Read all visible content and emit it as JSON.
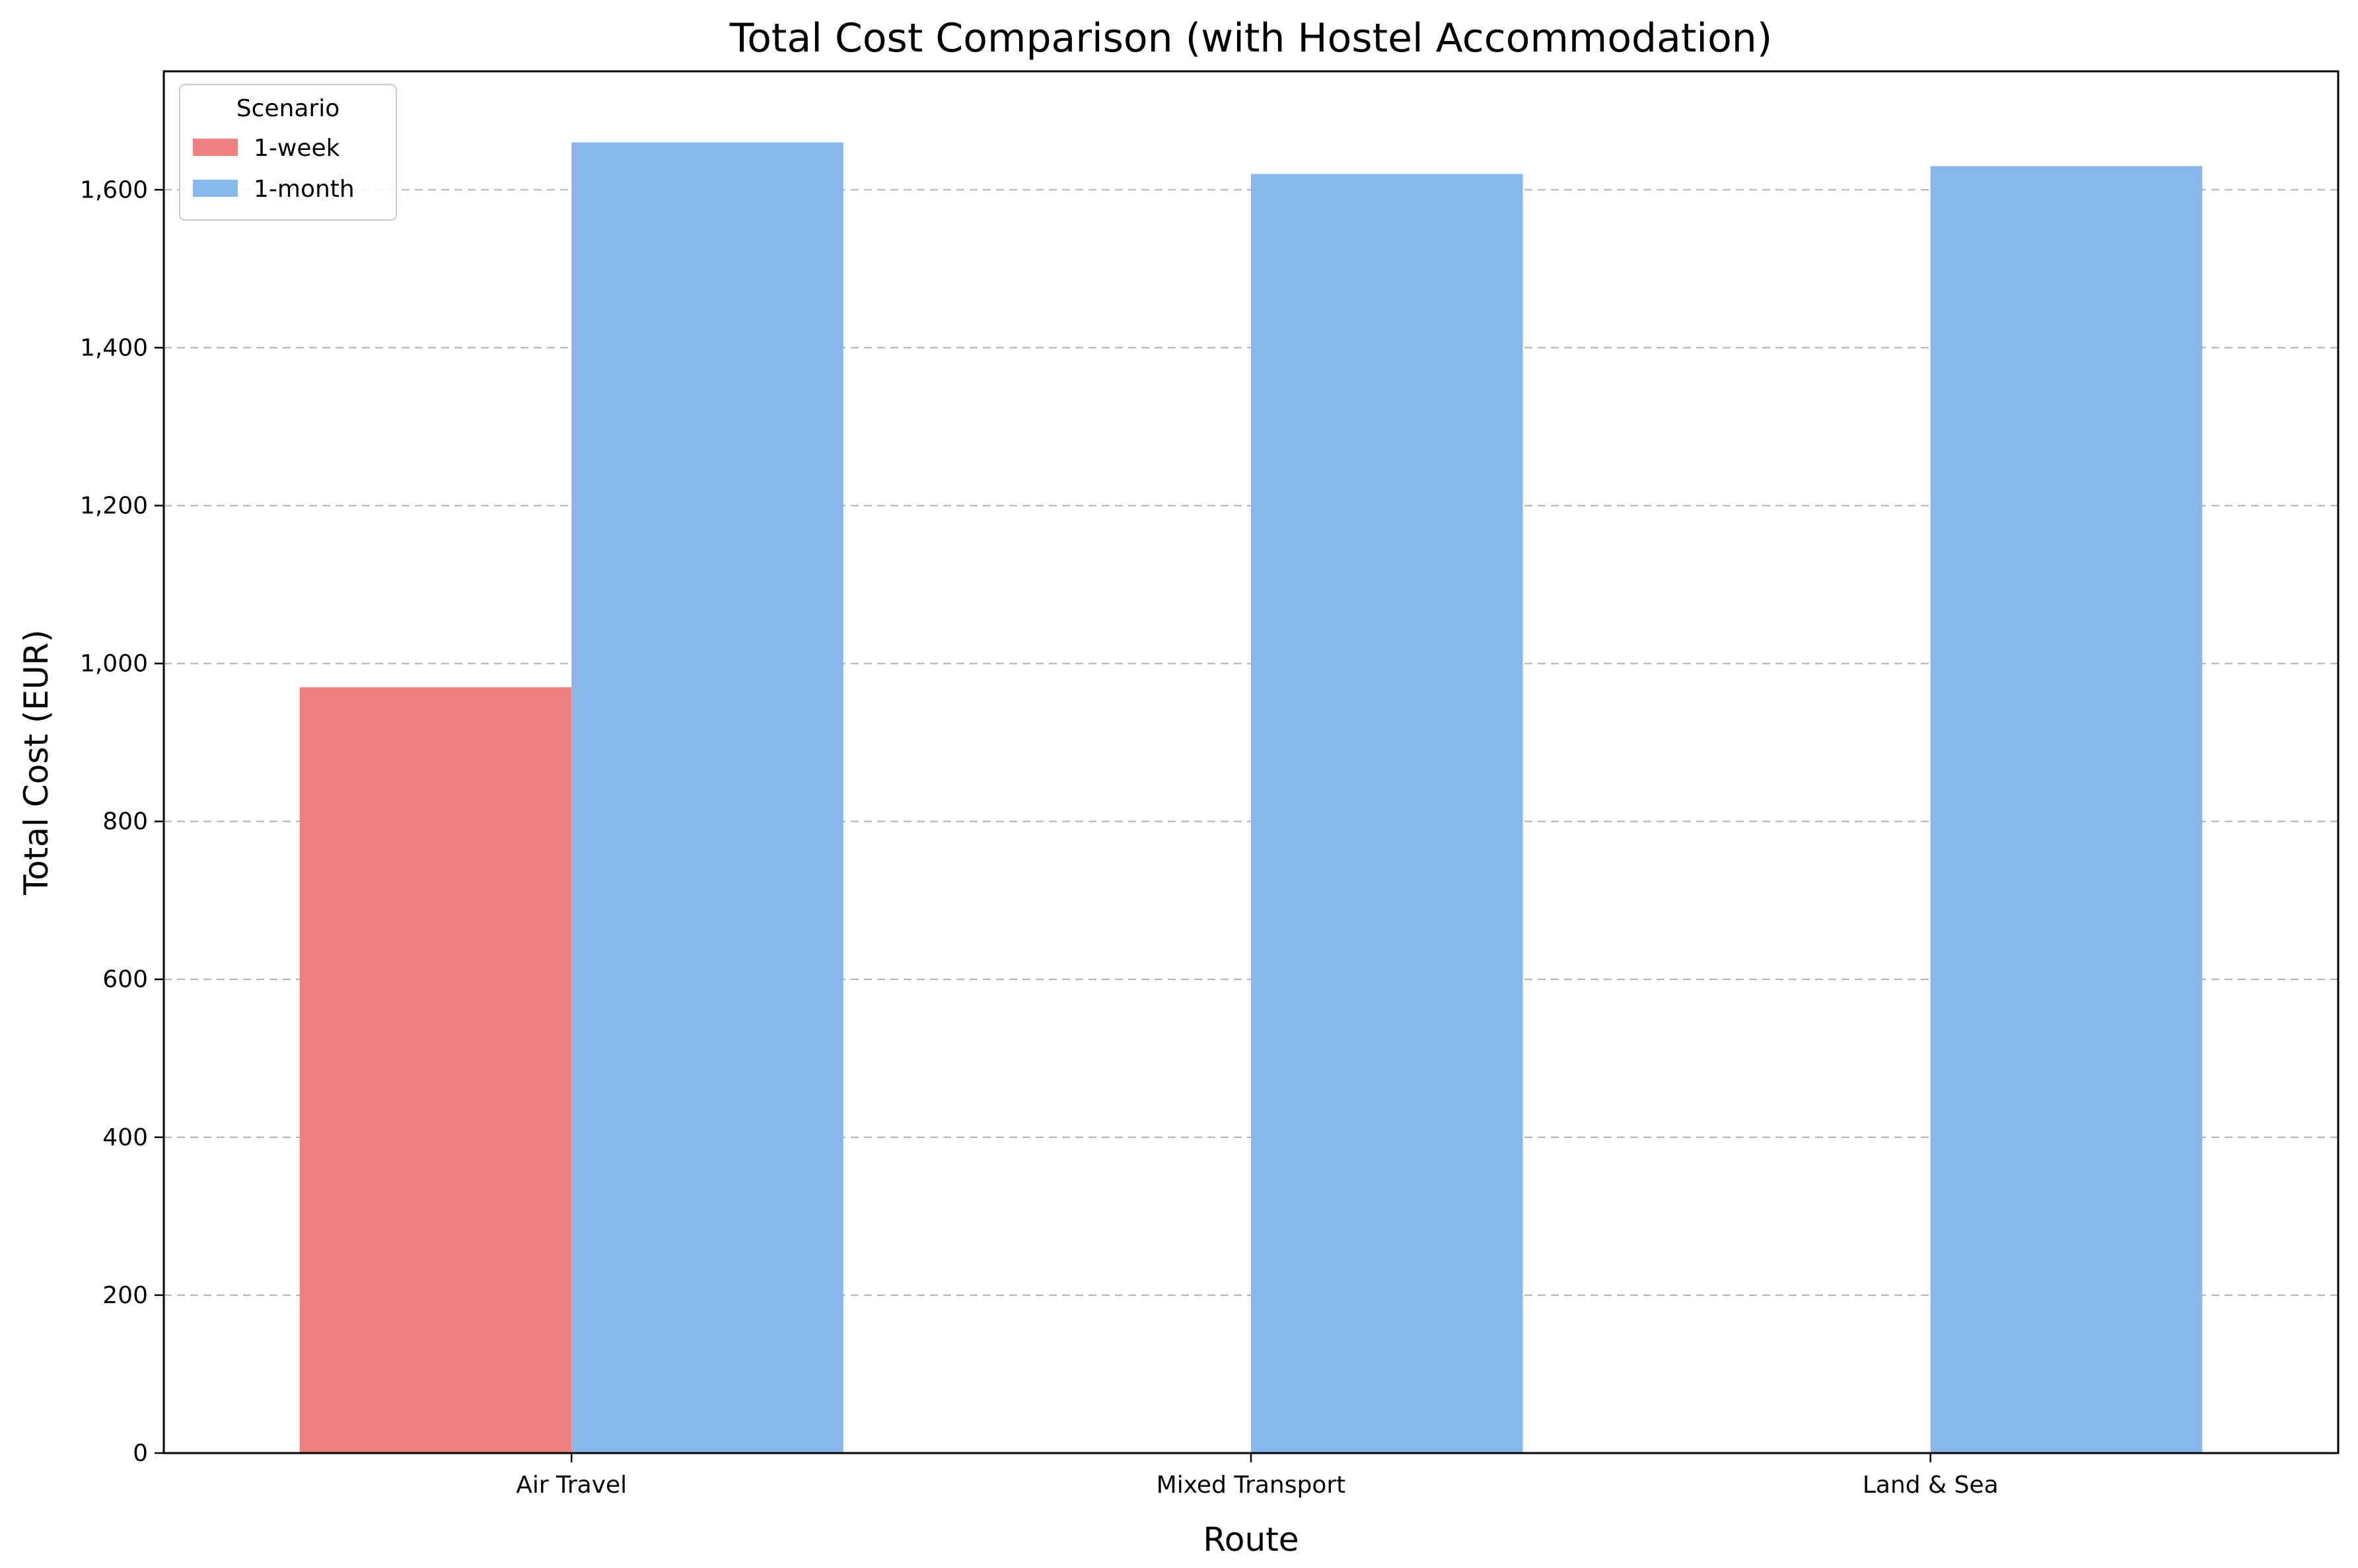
{
  "chart_data": {
    "type": "bar",
    "title": "Total Cost Comparison (with Hostel Accommodation)",
    "xlabel": "Route",
    "ylabel": "Total Cost (EUR)",
    "categories": [
      "Air Travel",
      "Mixed Transport",
      "Land & Sea"
    ],
    "series": [
      {
        "name": "1-week",
        "values": [
          970,
          null,
          null
        ],
        "color": "#f08080"
      },
      {
        "name": "1-month",
        "values": [
          1660,
          1620,
          1630
        ],
        "color": "#87b7eb"
      }
    ],
    "ylim": [
      0,
      1750
    ],
    "yticks": [
      0,
      200,
      400,
      600,
      800,
      1000,
      1200,
      1400,
      1600
    ],
    "ytick_labels": [
      "0",
      "200",
      "400",
      "600",
      "800",
      "1,000",
      "1,200",
      "1,400",
      "1,600"
    ],
    "grid": "y-dashed",
    "legend": {
      "title": "Scenario",
      "placement": "top-left"
    }
  }
}
